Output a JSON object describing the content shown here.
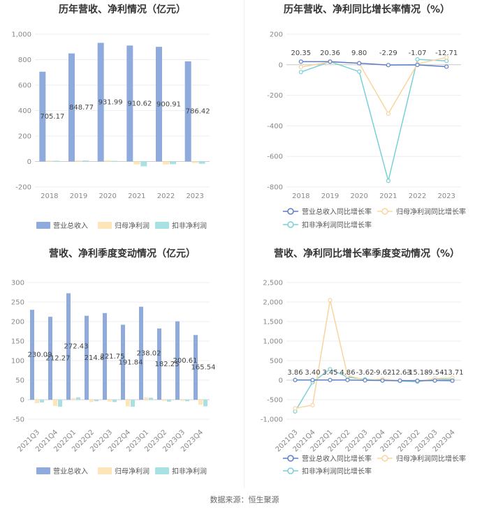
{
  "colors": {
    "revenue": "#8faadc",
    "net_profit": "#fde5b8",
    "deducted_profit": "#a8e1e2",
    "revenue_line": "#5b7fc7",
    "net_line": "#f9d59e",
    "deducted_line": "#7ad0d6",
    "grid": "#eeeeee"
  },
  "source": "数据来源：恒生聚源",
  "chart_data": [
    {
      "type": "bar",
      "title": "历年营收、净利情况（亿元）",
      "categories": [
        "2018",
        "2019",
        "2020",
        "2021",
        "2022",
        "2023"
      ],
      "series": [
        {
          "name": "营业总收入",
          "values": [
            705.17,
            848.77,
            931.99,
            910.62,
            900.91,
            786.42
          ]
        },
        {
          "name": "归母净利润",
          "values": [
            7.5,
            8.9,
            9.8,
            -22.5,
            -23.7,
            -12.2
          ]
        },
        {
          "name": "扣非净利润",
          "values": [
            6.0,
            8.0,
            5.0,
            -38.0,
            -21.0,
            -18.0
          ]
        }
      ],
      "data_labels": [
        "705.17",
        "848.77",
        "931.99",
        "910.62",
        "900.91",
        "786.42"
      ],
      "yticks": [
        "1,000",
        "800",
        "600",
        "400",
        "200",
        "0",
        "-200"
      ],
      "ylim": [
        -200,
        1000
      ]
    },
    {
      "type": "line",
      "title": "历年营收、净利同比增长率情况（%）",
      "categories": [
        "2018",
        "2019",
        "2020",
        "2021",
        "2022",
        "2023"
      ],
      "series": [
        {
          "name": "营业总收入同比增长率",
          "values": [
            20.35,
            20.36,
            9.8,
            -2.29,
            -1.07,
            -12.71
          ]
        },
        {
          "name": "归母净利润同比增长率",
          "values": [
            -15,
            18,
            10,
            -320,
            5,
            48
          ]
        },
        {
          "name": "扣非净利润同比增长率",
          "values": [
            -48,
            20,
            -45,
            -760,
            35,
            25
          ]
        }
      ],
      "data_labels": [
        "20.35",
        "20.36",
        "9.80",
        "-2.29",
        "-1.07",
        "-12.71"
      ],
      "yticks": [
        "200",
        "0",
        "-200",
        "-400",
        "-600",
        "-800"
      ],
      "ylim": [
        -800,
        200
      ]
    },
    {
      "type": "bar",
      "title": "营收、净利季度变动情况（亿元）",
      "categories": [
        "2021Q3",
        "2021Q4",
        "2022Q1",
        "2022Q2",
        "2022Q3",
        "2022Q4",
        "2023Q1",
        "2023Q2",
        "2023Q3",
        "2023Q4"
      ],
      "series": [
        {
          "name": "营业总收入",
          "values": [
            230.09,
            212.27,
            272.43,
            214.8,
            221.75,
            191.84,
            238.02,
            182.25,
            200.61,
            165.54
          ]
        },
        {
          "name": "归母净利润",
          "values": [
            -9,
            -16,
            4,
            -6,
            -5,
            -17,
            6,
            -3,
            -3,
            -13
          ]
        },
        {
          "name": "扣非净利润",
          "values": [
            -7,
            -18,
            6,
            -4,
            -6,
            -18,
            5,
            -5,
            -4,
            -17
          ]
        }
      ],
      "data_labels": [
        "230.09",
        "212.27",
        "272.43",
        "214.8",
        "221.75",
        "191.84",
        "238.02",
        "182.25",
        "200.61",
        "165.54"
      ],
      "yticks": [
        "300",
        "250",
        "200",
        "150",
        "100",
        "50",
        "0",
        "-50"
      ],
      "ylim": [
        -50,
        300
      ]
    },
    {
      "type": "line",
      "title": "营收、净利同比增长率季度变动情况（%）",
      "categories": [
        "2021Q3",
        "2021Q4",
        "2022Q1",
        "2022Q2",
        "2022Q3",
        "2022Q4",
        "2023Q1",
        "2023Q2",
        "2023Q3",
        "2023Q4"
      ],
      "series": [
        {
          "name": "营业总收入同比增长率",
          "values": [
            3.86,
            3.4,
            3.45,
            4.86,
            -3.62,
            -9.62,
            -12.63,
            -15.18,
            -9.54,
            -13.71
          ]
        },
        {
          "name": "归母净利润同比增长率",
          "values": [
            -720,
            -640,
            2050,
            120,
            0,
            30,
            -10,
            -20,
            40,
            60
          ]
        },
        {
          "name": "扣非净利润同比增长率",
          "values": [
            -800,
            -50,
            280,
            80,
            20,
            10,
            -20,
            -40,
            30,
            20
          ]
        }
      ],
      "data_labels": [
        "3.86",
        "3.40",
        "3.45",
        "4.86",
        "-3.62",
        "-9.62",
        "-12.63",
        "-15.18",
        "-9.54",
        "-13.71"
      ],
      "yticks": [
        "2,500",
        "2,000",
        "1,500",
        "1,000",
        "500",
        "0",
        "-500",
        "-1,000"
      ],
      "ylim": [
        -1000,
        2500
      ]
    }
  ]
}
